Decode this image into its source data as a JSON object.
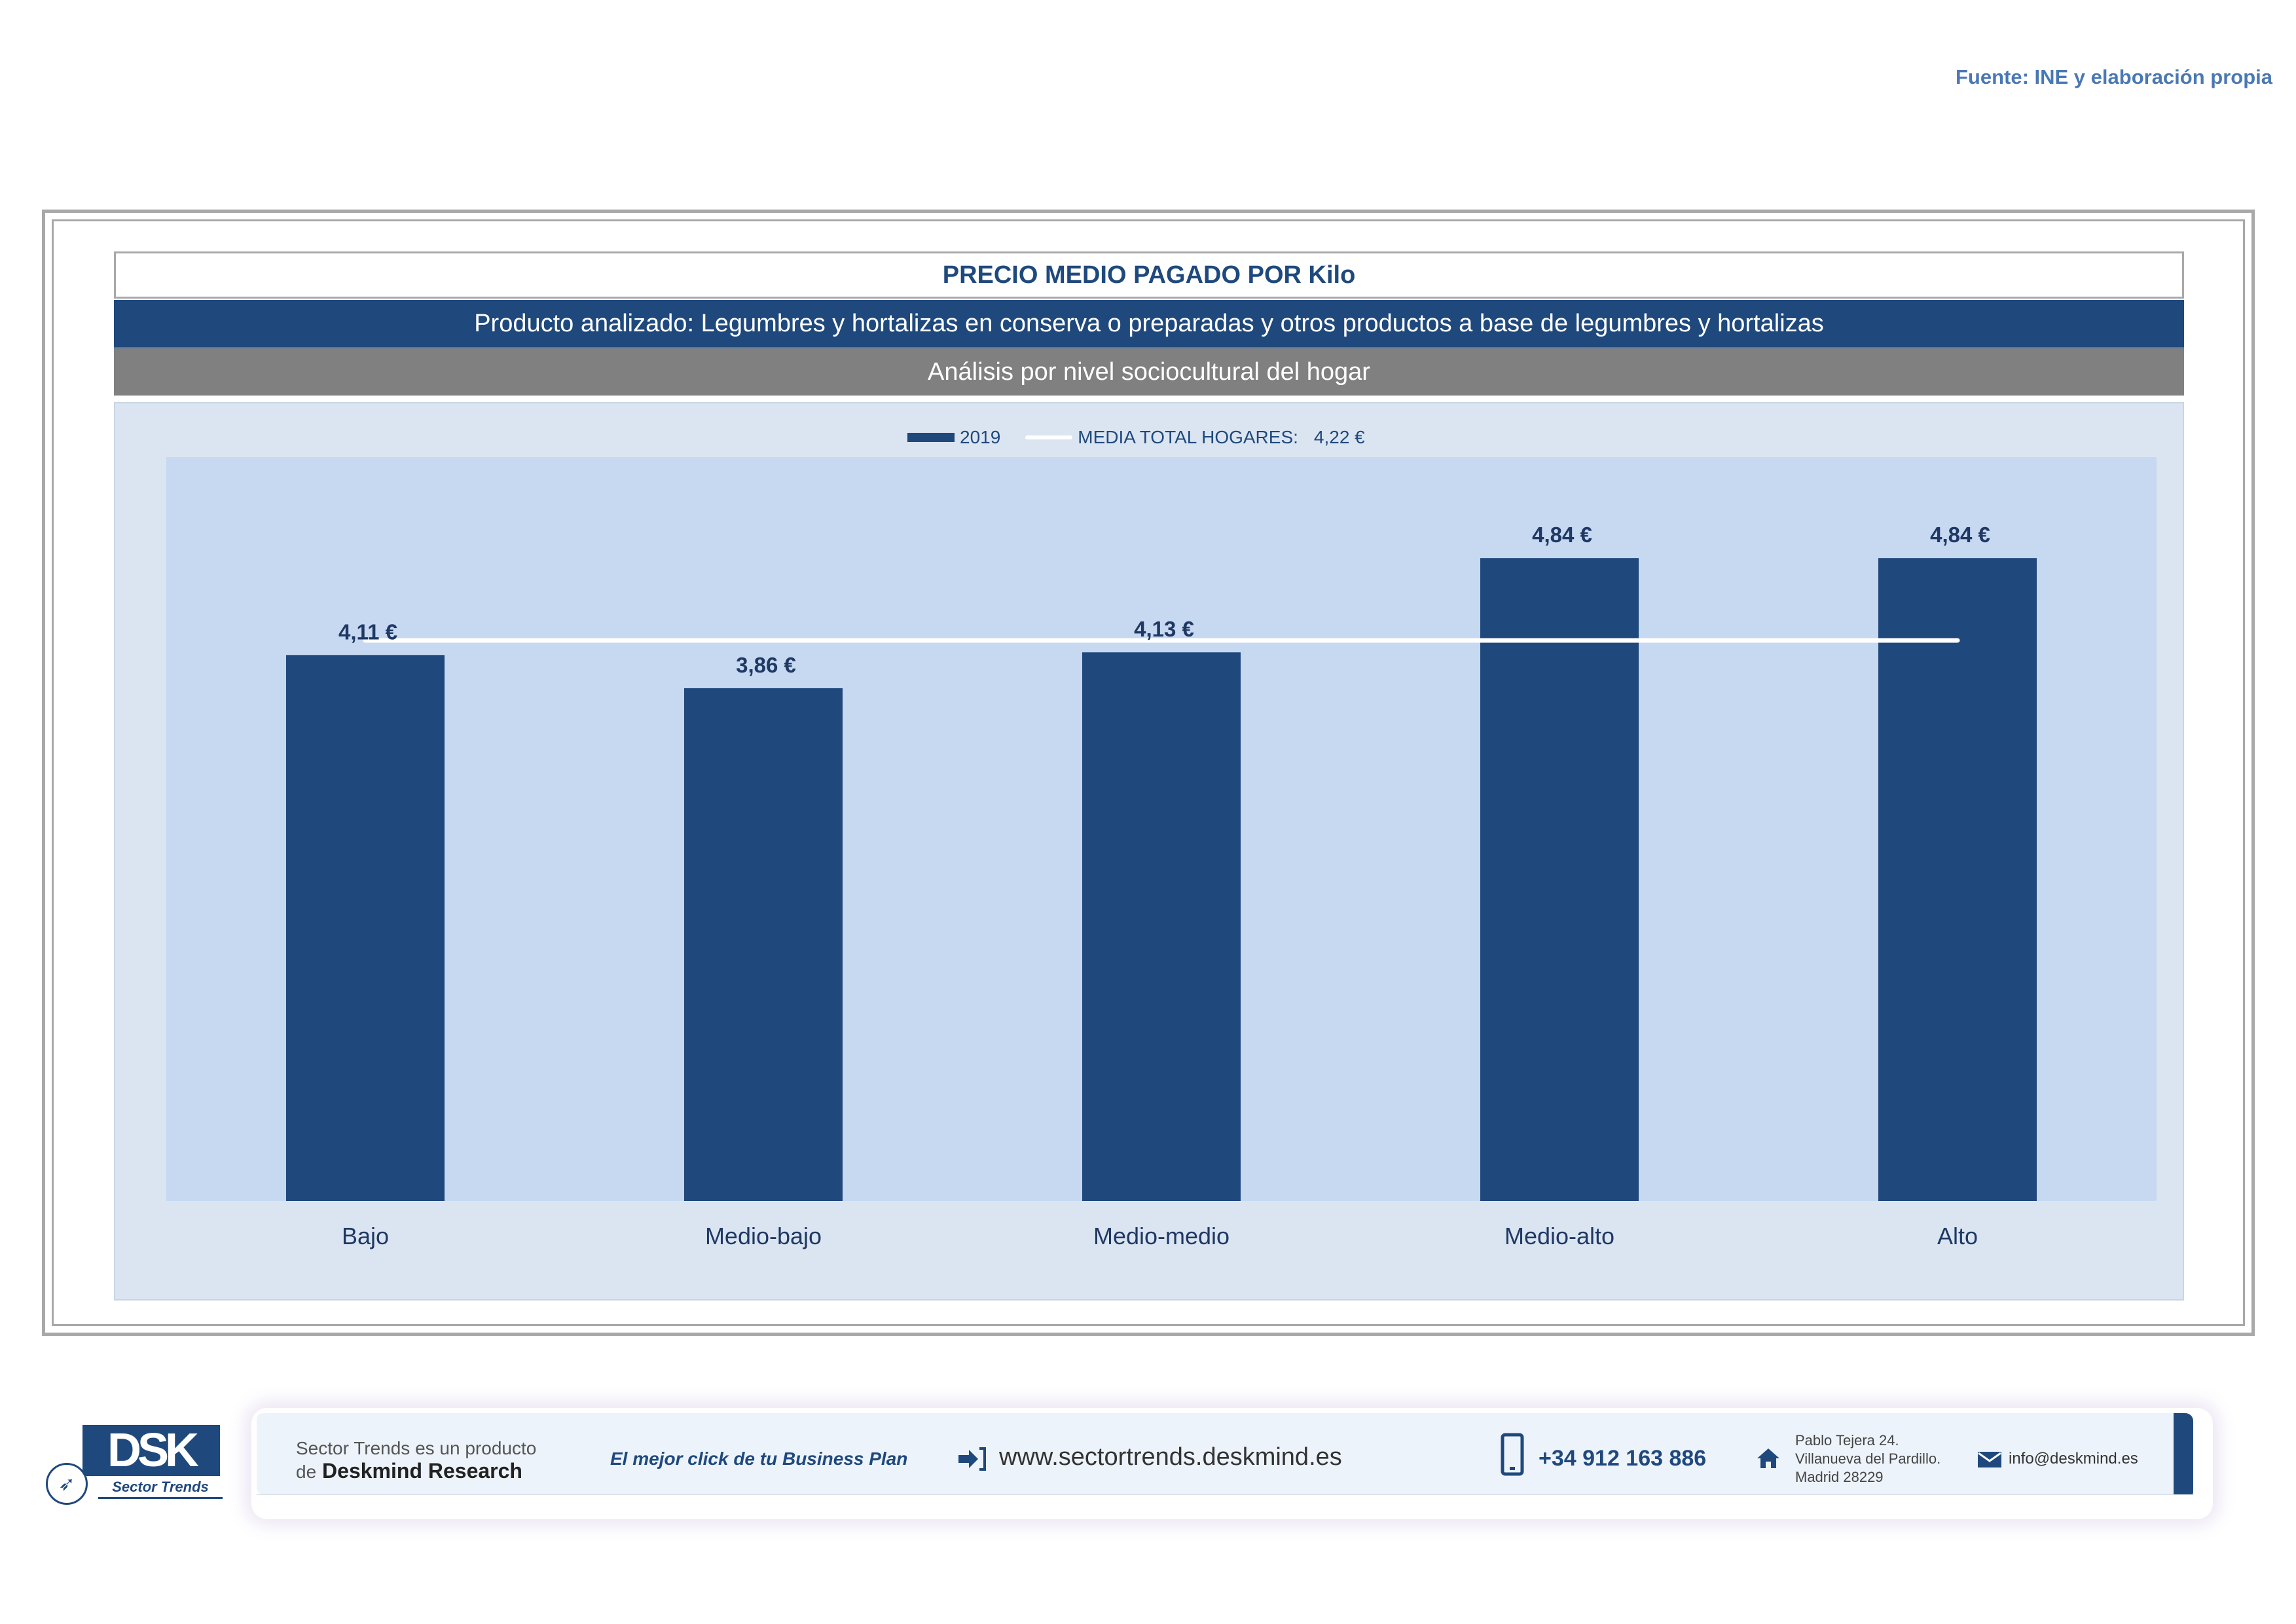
{
  "source_note": "Fuente: INE y elaboración propia",
  "title": "PRECIO MEDIO PAGADO POR Kilo",
  "product": "Producto analizado: Legumbres y hortalizas en conserva o preparadas y otros productos a base de legumbres y hortalizas",
  "analysis": "Análisis por nivel sociocultural del hogar",
  "legend": {
    "series_label": "2019",
    "average_label": "MEDIA TOTAL  HOGARES:",
    "average_value": "4,22 €"
  },
  "chart_data": {
    "type": "bar",
    "categories": [
      "Bajo",
      "Medio-bajo",
      "Medio-medio",
      "Medio-alto",
      "Alto"
    ],
    "series": [
      {
        "name": "2019",
        "values": [
          4.11,
          3.86,
          4.13,
          4.84,
          4.84
        ]
      }
    ],
    "value_labels": [
      "4,11 €",
      "3,86 €",
      "4,13 €",
      "4,84 €",
      "4,84 €"
    ],
    "reference_line": {
      "name": "MEDIA TOTAL  HOGARES:",
      "value": 4.22
    },
    "ylim": [
      0,
      5.6
    ],
    "grid": false,
    "legend_position": "top-center",
    "colors": {
      "bar": "#1f497d",
      "line": "#ffffff",
      "plot_bg": "#c6d9f1",
      "chart_bg": "#dbe5f1"
    }
  },
  "footer": {
    "logo_text": "DSK",
    "logo_tagline": "Sector Trends",
    "producto_line": "Sector Trends es un producto",
    "de_text": "de",
    "company": "Deskmind Research",
    "slogan": "El mejor click de tu Business Plan",
    "website": "www.sectortrends.deskmind.es",
    "phone": "+34 912 163 886",
    "address_lines": [
      "Pablo Tejera 24.",
      "Villanueva del Pardillo.",
      "Madrid 28229"
    ],
    "email": "info@deskmind.es",
    "icons": [
      "arrow-login-icon",
      "phone-icon",
      "home-icon",
      "envelope-icon"
    ]
  }
}
